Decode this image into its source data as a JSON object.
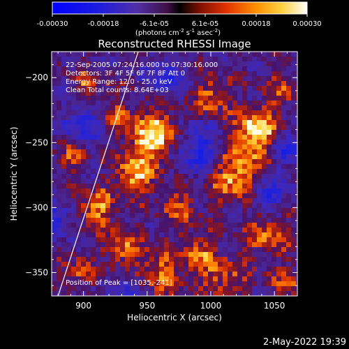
{
  "chart_data": {
    "type": "heatmap",
    "title": "Reconstructed RHESSI Image",
    "xlabel": "Heliocentric X (arcsec)",
    "ylabel": "Heliocentric Y (arcsec)",
    "xlim": [
      875,
      1068
    ],
    "ylim": [
      -368,
      -180
    ],
    "x_ticks": [
      900,
      950,
      1000,
      1050
    ],
    "y_ticks": [
      -350,
      -300,
      -250,
      -200
    ],
    "colorbar": {
      "range": [
        -0.0003,
        0.0003
      ],
      "tick_values": [
        -0.0003,
        -0.00018,
        -6e-05,
        6e-05,
        0.00018,
        0.0003
      ],
      "tick_labels": [
        "-0.00030",
        "-0.00018",
        "-6.1e-05",
        "6.1e-05",
        "0.00018",
        "0.00030"
      ],
      "unit_prefix": "(photons cm",
      "unit_exp1": "-2",
      "unit_mid": " s",
      "unit_exp2": "-1",
      "unit_mid2": " asec",
      "unit_exp3": "-2",
      "unit_suffix": ")"
    },
    "annotations": [
      "22-Sep-2005 07:24:16.000 to 07:30:16.000",
      "Detectors: 3F 4F 5F 6F 7F 8F  Att 0",
      "Energy Range: 12.0 - 25.0 keV",
      "Clean     Total counts: 8.64E+03"
    ],
    "peak_label": "Position of Peak = [1035,-241]",
    "limb_line": {
      "from": [
        880,
        -368
      ],
      "to": [
        943,
        -180
      ]
    },
    "grid": false
  },
  "footer": {
    "date": "2-May-2022 19:39"
  }
}
